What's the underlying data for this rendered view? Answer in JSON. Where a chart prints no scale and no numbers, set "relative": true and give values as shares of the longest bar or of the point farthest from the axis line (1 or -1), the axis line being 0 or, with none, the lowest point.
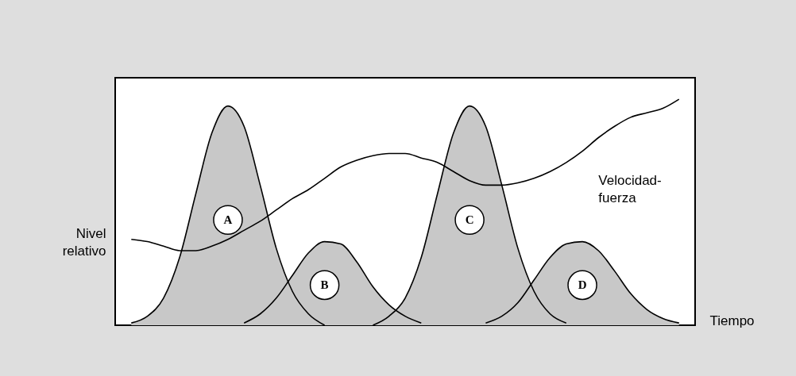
{
  "chart_data": {
    "type": "area",
    "relative": true,
    "xlabel": "Tiempo",
    "ylabel": "Nivel relativo",
    "categories": [
      null,
      null,
      null,
      null,
      null,
      null,
      null,
      null,
      null,
      null,
      null,
      null,
      null,
      null,
      null,
      null,
      null,
      null,
      null,
      null,
      null,
      null,
      null,
      null,
      null,
      null,
      null,
      null,
      null,
      null,
      null,
      null,
      null,
      null,
      null
    ],
    "series": [
      {
        "name": "A",
        "color": "#c8c8c8",
        "values": [
          0.01,
          0.04,
          0.12,
          0.3,
          0.58,
          0.85,
          0.97,
          0.88,
          0.62,
          0.34,
          0.15,
          0.05,
          0.0,
          null,
          null,
          null,
          null,
          null,
          null,
          null,
          null,
          null,
          null,
          null,
          null,
          null,
          null,
          null,
          null,
          null,
          null,
          null,
          null,
          null,
          null
        ]
      },
      {
        "name": "B",
        "color": "#c8c8c8",
        "values": [
          null,
          null,
          null,
          null,
          null,
          null,
          null,
          0.01,
          0.05,
          0.12,
          0.22,
          0.32,
          0.37,
          0.36,
          0.28,
          0.17,
          0.09,
          0.04,
          0.01,
          null,
          null,
          null,
          null,
          null,
          null,
          null,
          null,
          null,
          null,
          null,
          null,
          null,
          null,
          null,
          null
        ]
      },
      {
        "name": "C",
        "color": "#c8c8c8",
        "values": [
          null,
          null,
          null,
          null,
          null,
          null,
          null,
          null,
          null,
          null,
          null,
          null,
          null,
          null,
          null,
          0.0,
          0.04,
          0.12,
          0.3,
          0.58,
          0.85,
          0.97,
          0.88,
          0.62,
          0.34,
          0.15,
          0.05,
          0.01,
          null,
          null,
          null,
          null,
          null,
          null,
          null
        ]
      },
      {
        "name": "D",
        "color": "#c8c8c8",
        "values": [
          null,
          null,
          null,
          null,
          null,
          null,
          null,
          null,
          null,
          null,
          null,
          null,
          null,
          null,
          null,
          null,
          null,
          null,
          null,
          null,
          null,
          null,
          0.01,
          0.04,
          0.1,
          0.2,
          0.3,
          0.36,
          0.37,
          0.33,
          0.24,
          0.14,
          0.07,
          0.03,
          0.01
        ]
      },
      {
        "name": "Velocidad-fuerza",
        "type": "line",
        "color": "#000000",
        "values": [
          0.38,
          0.37,
          0.35,
          0.33,
          0.33,
          0.35,
          0.38,
          0.42,
          0.46,
          0.51,
          0.56,
          0.6,
          0.65,
          0.7,
          0.73,
          0.75,
          0.76,
          0.76,
          0.74,
          0.72,
          0.68,
          0.64,
          0.62,
          0.62,
          0.63,
          0.65,
          0.68,
          0.72,
          0.77,
          0.83,
          0.88,
          0.92,
          0.94,
          0.96,
          1.0
        ]
      }
    ]
  }
}
